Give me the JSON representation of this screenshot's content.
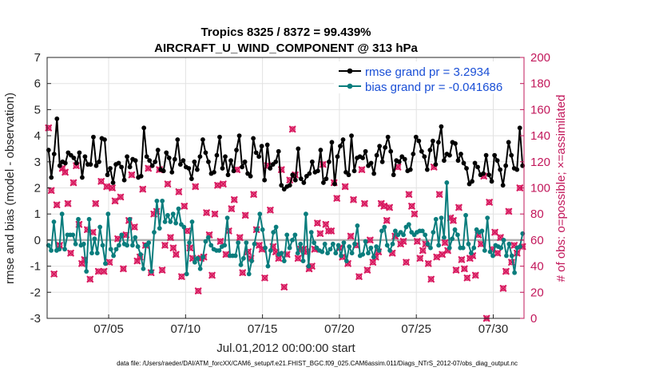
{
  "chart_data": {
    "type": "line",
    "title": "Tropics 8325 / 8372 = 99.439%",
    "subtitle": "AIRCRAFT_U_WIND_COMPONENT @ 313 hPa",
    "xlabel": "Jul.01,2012 00:00:00 start",
    "ylabel": "rmse and bias (model - observation)",
    "y2label": "# of obs: o=possible; ×=assimilated",
    "footnote": "data file: /Users/raeder/DAI/ATM_forcXX/CAM6_setup/f.e21.FHIST_BGC.f09_025.CAM6assim.011/Diags_NTrS_2012-07/obs_diag_output.nc",
    "x_unit": "day of July 2012 (fractional)",
    "xlim": [
      1,
      32
    ],
    "ylim": [
      -3,
      7
    ],
    "y2lim": [
      0,
      200
    ],
    "x_ticks": [
      5,
      10,
      15,
      20,
      25,
      30
    ],
    "x_tick_labels": [
      "07/05",
      "07/10",
      "07/15",
      "07/20",
      "07/25",
      "07/30"
    ],
    "y_ticks": [
      -3,
      -2,
      -1,
      0,
      1,
      2,
      3,
      4,
      5,
      6,
      7
    ],
    "y2_ticks": [
      0,
      20,
      40,
      60,
      80,
      100,
      120,
      140,
      160,
      180,
      200
    ],
    "reference_line": 0,
    "colors": {
      "rmse": "#000000",
      "bias": "#0a7d7d",
      "obs": "#d81b60",
      "y2axis": "#c2185b",
      "legend_text": "#1a4fd6",
      "zero_line": "#b0b0b0",
      "grid": "#e2e2e2"
    },
    "series": [
      {
        "name": "rmse grand pr = 3.2934",
        "axis": "left",
        "color": "#000000",
        "values": [
          3.45,
          2.4,
          3.3,
          4.65,
          2.85,
          3.0,
          2.95,
          3.35,
          3.25,
          3.15,
          2.95,
          3.35,
          2.4,
          3.2,
          2.9,
          2.9,
          3.95,
          2.85,
          3.0,
          3.9,
          3.85,
          2.5,
          2.75,
          2.2,
          2.9,
          2.95,
          2.8,
          2.3,
          3.2,
          2.8,
          3.1,
          3.05,
          2.4,
          2.45,
          4.3,
          3.2,
          3.05,
          2.85,
          3.0,
          3.45,
          2.7,
          2.65,
          3.35,
          3.15,
          2.6,
          3.1,
          3.85,
          2.9,
          3.05,
          2.8,
          2.75,
          2.35,
          3.0,
          2.7,
          3.2,
          3.85,
          3.35,
          3.0,
          2.55,
          2.6,
          3.25,
          3.95,
          2.75,
          3.2,
          2.5,
          3.05,
          2.65,
          3.45,
          4.0,
          2.8,
          3.0,
          2.55,
          2.45,
          3.9,
          3.35,
          3.2,
          3.6,
          2.3,
          3.65,
          2.75,
          2.9,
          3.0,
          3.4,
          2.1,
          1.95,
          2.05,
          2.1,
          2.5,
          2.3,
          3.5,
          2.35,
          2.2,
          2.45,
          2.55,
          3.0,
          2.6,
          2.65,
          3.45,
          2.2,
          2.35,
          3.0,
          3.75,
          2.15,
          3.2,
          3.6,
          3.85,
          2.6,
          2.5,
          4.0,
          2.65,
          3.15,
          3.2,
          3.15,
          3.4,
          2.85,
          2.95,
          2.55,
          3.25,
          3.6,
          3.0,
          3.55,
          3.95,
          3.4,
          2.5,
          3.05,
          3.0,
          3.2,
          3.1,
          2.65,
          2.7,
          3.3,
          3.95,
          3.8,
          3.4,
          3.2,
          2.7,
          3.45,
          3.8,
          2.9,
          3.75,
          4.35,
          3.05,
          3.3,
          3.25,
          3.75,
          3.7,
          3.05,
          3.3,
          2.95,
          2.75,
          2.15,
          2.25,
          2.95,
          2.8,
          2.5,
          2.55,
          3.25,
          2.5,
          2.25,
          3.25,
          3.05,
          2.7,
          2.1,
          2.85,
          3.75,
          3.25,
          2.75,
          2.7,
          4.3,
          2.85
        ]
      },
      {
        "name": "bias grand pr = -0.041686",
        "axis": "left",
        "color": "#0a7d7d",
        "values": [
          -0.2,
          -0.4,
          0.7,
          -0.4,
          -0.35,
          1.0,
          -0.35,
          0.2,
          0.2,
          0.2,
          -0.15,
          0.8,
          -0.2,
          -0.15,
          -1.2,
          0.8,
          -0.5,
          0.05,
          -0.5,
          0.5,
          -0.2,
          -0.9,
          1.0,
          -0.35,
          -0.6,
          -0.35,
          -0.2,
          0.2,
          -0.15,
          -0.2,
          0.8,
          -0.2,
          0.1,
          -0.25,
          -0.55,
          -1.1,
          -0.2,
          -0.1,
          -1.2,
          0.3,
          1.5,
          0.45,
          1.5,
          0.7,
          0.95,
          0.7,
          1.0,
          0.65,
          1.2,
          0.6,
          0.5,
          -1.3,
          -0.1,
          0.7,
          -0.85,
          -0.7,
          -1.1,
          -0.65,
          -0.05,
          0.1,
          -0.2,
          -0.35,
          -0.4,
          -0.4,
          -0.25,
          -0.2,
          0.85,
          -0.6,
          -0.6,
          -0.6,
          -0.1,
          -0.95,
          -0.7,
          -0.1,
          -1.3,
          -0.8,
          -0.15,
          0.4,
          1.0,
          0.4,
          -0.3,
          -1.0,
          -0.4,
          0.3,
          0.5,
          -0.55,
          -0.5,
          -0.8,
          0.2,
          -0.3,
          0.0,
          0.2,
          -0.5,
          -0.15,
          -0.8,
          1.0,
          -1.0,
          0.3,
          -0.1,
          -0.3,
          -0.4,
          -0.45,
          -0.15,
          -0.5,
          -0.35,
          -0.15,
          -0.5,
          -0.2,
          -0.6,
          -0.1,
          -0.8,
          -0.25,
          -0.5,
          -0.15,
          0.55,
          -0.6,
          -0.55,
          -0.05,
          -0.5,
          -0.3,
          -0.65,
          -0.25,
          -0.4,
          0.35,
          0.5,
          -0.2,
          -0.4,
          -0.15,
          0.35,
          0.2,
          0.3,
          0.2,
          0.5,
          0.6,
          0.3,
          0.2,
          0.3,
          0.35,
          0.35,
          0.2,
          -0.15,
          -0.3,
          0.3,
          0.8,
          -0.2,
          0.85,
          0.1,
          2.2,
          -0.3,
          0.05,
          0.4,
          0.2,
          -0.3,
          -0.3,
          0.95,
          -0.15,
          -0.5,
          -0.3,
          0.4,
          0.3,
          0.35,
          -0.4,
          0.85,
          -0.45,
          -0.6,
          -0.2,
          -0.25,
          -0.3,
          0.0,
          -0.6,
          -0.15,
          -0.6,
          -1.25,
          -0.3,
          -0.25,
          0.25
        ]
      },
      {
        "name": "# of obs (possible and assimilated)",
        "axis": "right",
        "color": "#d81b60",
        "marker": "o and × overlaid",
        "values": [
          146,
          98,
          34,
          87,
          56,
          115,
          112,
          88,
          50,
          104,
          117,
          72,
          42,
          45,
          68,
          30,
          66,
          88,
          36,
          105,
          36,
          101,
          43,
          100,
          90,
          61,
          93,
          38,
          64,
          75,
          110,
          70,
          44,
          47,
          99,
          56,
          115,
          35,
          80,
          82,
          114,
          37,
          56,
          103,
          62,
          54,
          49,
          97,
          32,
          86,
          67,
          54,
          46,
          101,
          21,
          46,
          47,
          81,
          64,
          33,
          80,
          102,
          59,
          103,
          49,
          67,
          84,
          91,
          114,
          62,
          35,
          79,
          51,
          46,
          95,
          68,
          56,
          53,
          31,
          117,
          83,
          55,
          51,
          46,
          114,
          24,
          49,
          106,
          145,
          110,
          46,
          53,
          53,
          51,
          38,
          40,
          53,
          73,
          65,
          118,
          72,
          67,
          67,
          104,
          92,
          54,
          47,
          101,
          42,
          63,
          91,
          56,
          32,
          114,
          88,
          37,
          60,
          43,
          47,
          51,
          88,
          86,
          75,
          85,
          50,
          63,
          116,
          57,
          59,
          43,
          95,
          86,
          80,
          59,
          46,
          52,
          57,
          42,
          30,
          116,
          47,
          95,
          49,
          58,
          52,
          77,
          75,
          37,
          85,
          45,
          38,
          31,
          46,
          48,
          33,
          64,
          57,
          109,
          0,
          89,
          53,
          66,
          50,
          62,
          23,
          36,
          82,
          43,
          56,
          50,
          100,
          55
        ]
      }
    ]
  }
}
